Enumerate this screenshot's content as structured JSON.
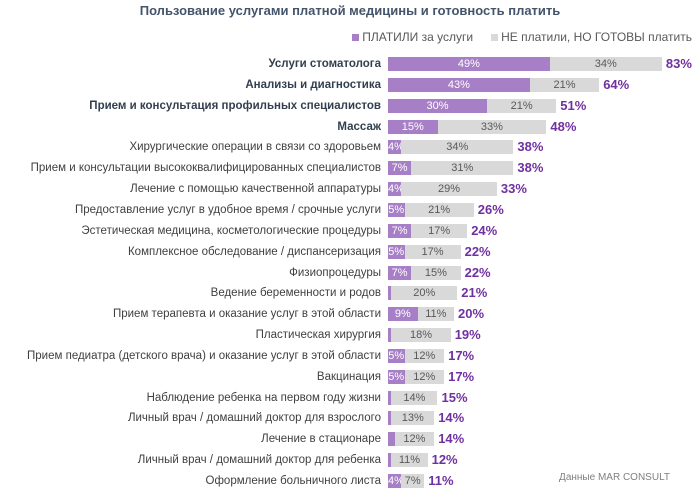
{
  "chart_data": {
    "type": "bar",
    "orientation": "horizontal-stacked",
    "title": "Пользование услугами платной медицины и готовность платить",
    "legend_position": "top-right",
    "grid": false,
    "colors": {
      "paid": "#a77fc6",
      "ready": "#d9d9d9",
      "total": "#7030a0"
    },
    "series": [
      {
        "name": "ПЛАТИЛИ за услуги",
        "values": [
          49,
          43,
          30,
          15,
          4,
          7,
          4,
          5,
          7,
          5,
          7,
          1,
          9,
          1,
          5,
          5,
          1,
          1,
          2,
          1,
          4
        ]
      },
      {
        "name": "НЕ платили, НО ГОТОВЫ платить",
        "values": [
          34,
          21,
          21,
          33,
          34,
          31,
          29,
          21,
          17,
          17,
          15,
          20,
          11,
          18,
          12,
          12,
          14,
          13,
          12,
          11,
          7
        ]
      }
    ],
    "totals": [
      83,
      64,
      51,
      48,
      38,
      38,
      33,
      26,
      24,
      22,
      22,
      21,
      20,
      19,
      17,
      17,
      15,
      14,
      14,
      12,
      11
    ],
    "categories": [
      "Услуги стоматолога",
      "Анализы и диагностика",
      "Прием и консультация профильных специалистов",
      "Массаж",
      "Хирургические операции в связи со здоровьем",
      "Прием и консультации высококвалифицированных специалистов",
      "Лечение с помощью качественной аппаратуры",
      "Предоставление услуг в удобное время / срочные услуги",
      "Эстетическая медицина, косметологические процедуры",
      "Комплексное обследование / диспансеризация",
      "Физиопроцедуры",
      "Ведение беременности и родов",
      "Прием терапевта и оказание услуг в этой области",
      "Пластическая хирургия",
      "Прием педиатра (детского врача) и оказание услуг в этой области",
      "Вакцинация",
      "Наблюдение ребенка на первом году жизни",
      "Личный врач / домашний доктор для взрослого",
      "Лечение в стационаре",
      "Личный врач / домашний доктор для ребенка",
      "Оформление больничного листа"
    ],
    "bold_categories_count": 4,
    "source": "Данные MAR CONSULT"
  }
}
